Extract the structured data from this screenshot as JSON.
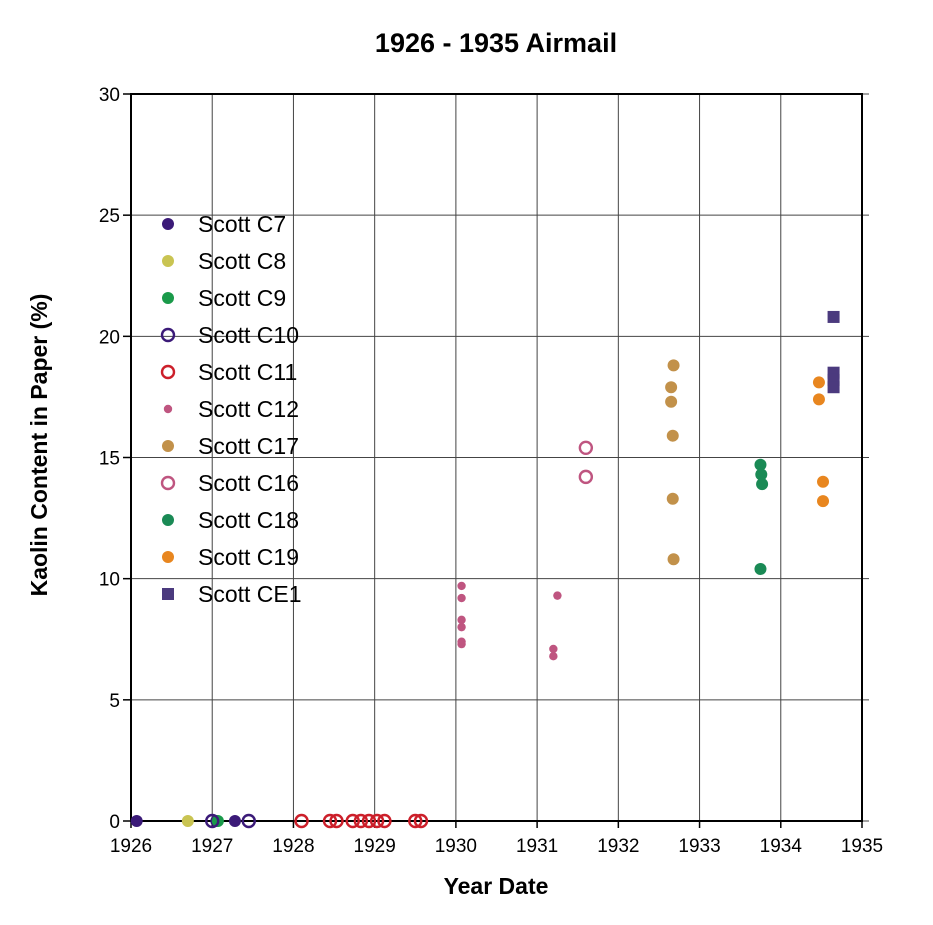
{
  "chart_data": {
    "type": "scatter",
    "title": "1926 - 1935   Airmail",
    "xlabel": "Year Date",
    "ylabel": "Kaolin Content in Paper (%)",
    "xlim": [
      1926,
      1935
    ],
    "ylim": [
      0,
      30
    ],
    "xticks": [
      "1926",
      "1927",
      "1928",
      "1929",
      "1930",
      "1931",
      "1932",
      "1933",
      "1934",
      "1935"
    ],
    "yticks": [
      "0",
      "5",
      "10",
      "15",
      "20",
      "25",
      "30"
    ],
    "grid": true,
    "legend_position": "left",
    "series": [
      {
        "name": "Scott C7",
        "marker": "filled-circle",
        "color": "#3b1a78",
        "points": [
          [
            1926.07,
            0
          ],
          [
            1927.05,
            0
          ],
          [
            1927.28,
            0
          ]
        ]
      },
      {
        "name": "Scott C8",
        "marker": "filled-circle",
        "color": "#c9c452",
        "points": [
          [
            1926.7,
            0
          ]
        ]
      },
      {
        "name": "Scott C9",
        "marker": "filled-circle",
        "color": "#1a9a4a",
        "points": [
          [
            1927.07,
            0
          ]
        ]
      },
      {
        "name": "Scott C10",
        "marker": "open-circle",
        "color": "#3b1a78",
        "points": [
          [
            1927.0,
            0
          ],
          [
            1927.45,
            0
          ]
        ]
      },
      {
        "name": "Scott C11",
        "marker": "open-circle",
        "color": "#cc1f2a",
        "points": [
          [
            1928.1,
            0
          ],
          [
            1928.45,
            0
          ],
          [
            1928.53,
            0
          ],
          [
            1928.73,
            0
          ],
          [
            1928.83,
            0
          ],
          [
            1928.93,
            0
          ],
          [
            1929.03,
            0
          ],
          [
            1929.12,
            0
          ],
          [
            1929.5,
            0
          ],
          [
            1929.57,
            0
          ]
        ]
      },
      {
        "name": "Scott C12",
        "marker": "small-circle",
        "color": "#bf5580",
        "points": [
          [
            1930.07,
            9.7
          ],
          [
            1930.07,
            9.2
          ],
          [
            1930.07,
            8.3
          ],
          [
            1930.07,
            8.0
          ],
          [
            1930.07,
            7.4
          ],
          [
            1930.07,
            7.3
          ],
          [
            1931.2,
            7.1
          ],
          [
            1931.2,
            6.8
          ],
          [
            1931.25,
            9.3
          ]
        ]
      },
      {
        "name": "Scott C17",
        "marker": "filled-circle",
        "color": "#c2914a",
        "points": [
          [
            1932.65,
            17.9
          ],
          [
            1932.65,
            17.3
          ],
          [
            1932.68,
            18.8
          ],
          [
            1932.67,
            15.9
          ],
          [
            1932.67,
            13.3
          ],
          [
            1932.68,
            10.8
          ]
        ]
      },
      {
        "name": "Scott C16",
        "marker": "open-circle",
        "color": "#bf5580",
        "points": [
          [
            1931.6,
            15.4
          ],
          [
            1931.6,
            14.2
          ]
        ]
      },
      {
        "name": "Scott C18",
        "marker": "filled-circle",
        "color": "#1a8a55",
        "points": [
          [
            1933.75,
            14.7
          ],
          [
            1933.76,
            14.3
          ],
          [
            1933.77,
            13.9
          ],
          [
            1933.75,
            10.4
          ]
        ]
      },
      {
        "name": "Scott C19",
        "marker": "filled-circle",
        "color": "#e8861f",
        "points": [
          [
            1934.47,
            18.1
          ],
          [
            1934.47,
            17.4
          ],
          [
            1934.52,
            14.0
          ],
          [
            1934.52,
            13.2
          ]
        ]
      },
      {
        "name": "Scott CE1",
        "marker": "filled-square",
        "color": "#4b3a7e",
        "points": [
          [
            1934.65,
            20.8
          ],
          [
            1934.65,
            18.5
          ],
          [
            1934.65,
            18.2
          ],
          [
            1934.65,
            17.9
          ]
        ]
      }
    ]
  }
}
